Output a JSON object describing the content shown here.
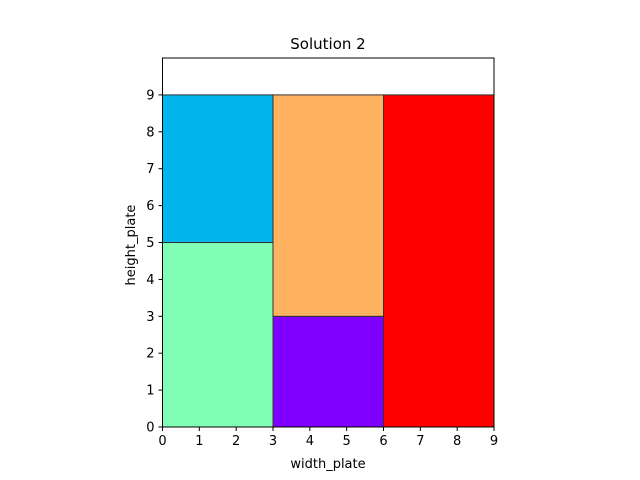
{
  "chart_data": {
    "type": "rectangle-packing",
    "title": "Solution 2",
    "xlabel": "width_plate",
    "ylabel": "height_plate",
    "xlim": [
      0,
      9
    ],
    "ylim": [
      0,
      10
    ],
    "xticks": [
      "0",
      "1",
      "2",
      "3",
      "4",
      "5",
      "6",
      "7",
      "8",
      "9"
    ],
    "yticks": [
      "0",
      "1",
      "2",
      "3",
      "4",
      "5",
      "6",
      "7",
      "8",
      "9"
    ],
    "grid": false,
    "rectangles": [
      {
        "x": 0,
        "y": 0,
        "width": 3,
        "height": 5,
        "color": "#80ffb4"
      },
      {
        "x": 0,
        "y": 5,
        "width": 3,
        "height": 4,
        "color": "#00b5eb"
      },
      {
        "x": 3,
        "y": 0,
        "width": 3,
        "height": 3,
        "color": "#8000ff"
      },
      {
        "x": 3,
        "y": 3,
        "width": 3,
        "height": 6,
        "color": "#ffb360"
      },
      {
        "x": 6,
        "y": 0,
        "width": 3,
        "height": 9,
        "color": "#ff0000"
      }
    ]
  }
}
